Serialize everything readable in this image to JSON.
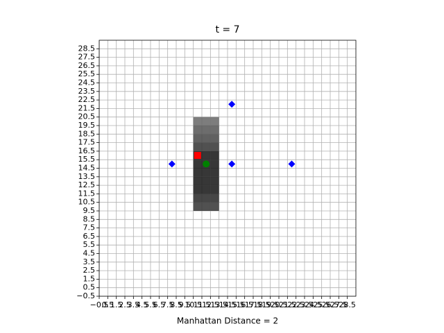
{
  "chart_data": {
    "type": "scatter",
    "title": "t = 7",
    "xlabel": "Manhattan Distance = 2",
    "xlim": [
      -0.5,
      29.5
    ],
    "ylim": [
      -0.5,
      29.5
    ],
    "xticks": [
      {
        "value": -0.5,
        "label": "−0.5"
      },
      0.5,
      1.5,
      2.5,
      3.5,
      4.5,
      5.5,
      6.5,
      7.5,
      8.5,
      9.5,
      10.5,
      11.5,
      12.5,
      13.5,
      14.5,
      15.5,
      16.5,
      17.5,
      18.5,
      19.5,
      20.5,
      21.5,
      22.5,
      23.5,
      24.5,
      25.5,
      26.5,
      27.5,
      28.5
    ],
    "yticks": [
      {
        "value": -0.5,
        "label": "−0.5"
      },
      0.5,
      1.5,
      2.5,
      3.5,
      4.5,
      5.5,
      6.5,
      7.5,
      8.5,
      9.5,
      10.5,
      11.5,
      12.5,
      13.5,
      14.5,
      15.5,
      16.5,
      17.5,
      18.5,
      19.5,
      20.5,
      21.5,
      22.5,
      23.5,
      24.5,
      25.5,
      26.5,
      27.5,
      28.5
    ],
    "grid": true,
    "heatmap": {
      "colormap": "gray",
      "x": [
        11,
        12,
        13
      ],
      "y": [
        10,
        11,
        12,
        13,
        14,
        15,
        16,
        17,
        18,
        19,
        20
      ],
      "values": [
        [
          0.2,
          0.2,
          0.2
        ],
        [
          0.15,
          0.15,
          0.15
        ],
        [
          0.08,
          0.08,
          0.08
        ],
        [
          0.08,
          0.08,
          0.08
        ],
        [
          0.08,
          0.08,
          0.08
        ],
        [
          0.08,
          0.08,
          0.08
        ],
        [
          0.08,
          0.08,
          0.08
        ],
        [
          0.2,
          0.2,
          0.2
        ],
        [
          0.27,
          0.27,
          0.27
        ],
        [
          0.33,
          0.33,
          0.33
        ],
        [
          0.4,
          0.4,
          0.4
        ]
      ]
    },
    "series": [
      {
        "color": "#0000ff",
        "marker": "diamond",
        "x": [
          8,
          15,
          22,
          15
        ],
        "values": [
          15,
          15,
          15,
          22
        ]
      },
      {
        "color": "#ff0000",
        "marker": "square",
        "x": [
          11
        ],
        "values": [
          16
        ]
      },
      {
        "color": "#008000",
        "marker": "circle",
        "x": [
          12
        ],
        "values": [
          15
        ]
      }
    ]
  }
}
